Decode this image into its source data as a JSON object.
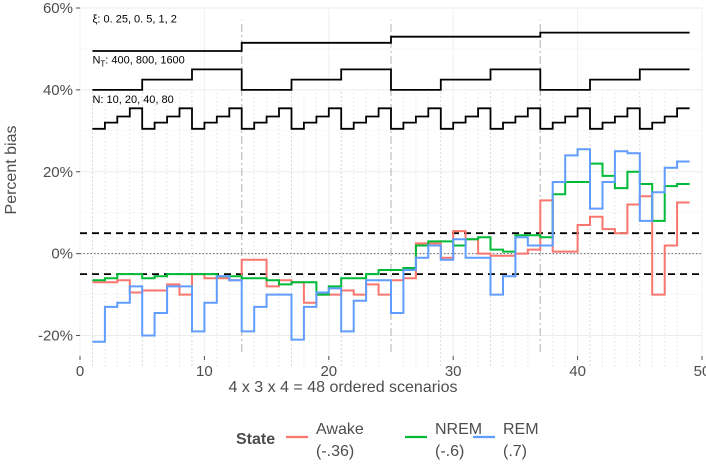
{
  "chart_data": {
    "type": "line",
    "step": true,
    "xlabel": "4 x 3 x 4 = 48 ordered scenarios",
    "ylabel": "Percent bias",
    "xlim": [
      0,
      50
    ],
    "ylim": [
      -25,
      60
    ],
    "x_ticks": [
      0,
      10,
      20,
      30,
      40,
      50
    ],
    "y_ticks": [
      -20,
      0,
      20,
      40,
      60
    ],
    "y_tick_labels": [
      "-20%",
      "0%",
      "20%",
      "40%",
      "60%"
    ],
    "grid": true,
    "reference_lines": [
      {
        "y": 5,
        "style": "dashed"
      },
      {
        "y": -5,
        "style": "dashed"
      },
      {
        "y": 0,
        "style": "dotted"
      }
    ],
    "group_separators_x": [
      13,
      25,
      37
    ],
    "annotations": [
      {
        "text": "ξ: 0. 25, 0. 5, 1, 2"
      },
      {
        "text": "N",
        "sub": "T",
        "rest": ": 400, 800, 1600"
      },
      {
        "text": "N: 10, 20, 40, 80"
      }
    ],
    "legend": {
      "title": "State",
      "position": "bottom",
      "items": [
        {
          "line1": "Awake",
          "line2": "(-.36)",
          "color": "#F8766D"
        },
        {
          "line1": "NREM",
          "line2": "(-.6)",
          "color": "#00BA38"
        },
        {
          "line1": "REM",
          "line2": "(.7)",
          "color": "#619CFF"
        }
      ]
    },
    "series": [
      {
        "name": "Awake",
        "color": "#F8766D",
        "values": [
          -7,
          -7,
          -6.5,
          -9.5,
          -9,
          -9,
          -7.5,
          -10,
          -5,
          -6,
          -6,
          -6.5,
          -1.5,
          -1.5,
          -8,
          -6.5,
          -7,
          -12,
          -10,
          -10,
          -9,
          -10,
          -7.5,
          -10,
          -6.5,
          -6,
          2.5,
          2.5,
          -1,
          5.5,
          3.5,
          0,
          -0.5,
          -0.5,
          0,
          1,
          13,
          0.5,
          0.5,
          7,
          9,
          6,
          5,
          12,
          14,
          -10,
          2,
          12.5
        ]
      },
      {
        "name": "NREM",
        "color": "#00BA38",
        "values": [
          -6.5,
          -6,
          -5,
          -5,
          -6,
          -5.5,
          -5,
          -5,
          -5,
          -5,
          -5.5,
          -5.5,
          -6,
          -6,
          -6.5,
          -7.5,
          -7,
          -7,
          -10,
          -8,
          -6,
          -6,
          -5,
          -4,
          -4,
          -3.5,
          2,
          3,
          3,
          2,
          3.5,
          4,
          1,
          0.5,
          4.5,
          4.5,
          4,
          14.5,
          17.5,
          17.5,
          22,
          19,
          16,
          20,
          17,
          8,
          16.5,
          17
        ]
      },
      {
        "name": "REM",
        "color": "#619CFF",
        "values": [
          -21.5,
          -13,
          -12,
          -8,
          -20,
          -14.5,
          -8,
          -8,
          -19,
          -12,
          -5.5,
          -6.5,
          -19,
          -13,
          -10,
          -10,
          -21,
          -13,
          -9.5,
          -8.5,
          -19,
          -11.5,
          -6.5,
          -6.5,
          -14.5,
          -4,
          -1,
          2,
          -1.5,
          3.5,
          -1,
          -1,
          -10,
          -5.5,
          4,
          2,
          2,
          17.5,
          24,
          25.5,
          11,
          17.5,
          25,
          24.5,
          8,
          15,
          21,
          22.5
        ]
      }
    ]
  }
}
